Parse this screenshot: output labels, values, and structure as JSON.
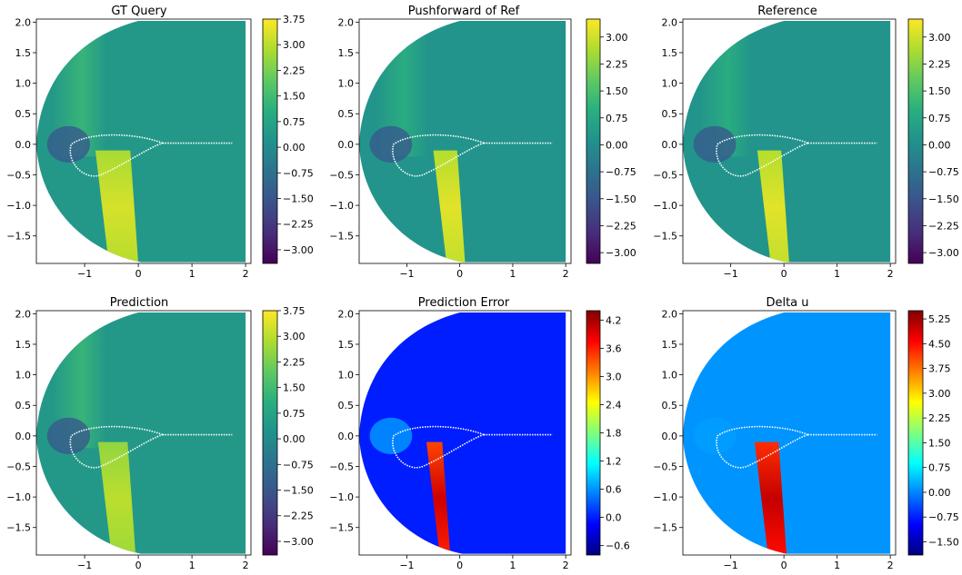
{
  "chart_data": [
    {
      "type": "heatmap",
      "title": "GT Query",
      "colormap": "viridis",
      "x_ticks": [
        "−1",
        "0",
        "1",
        "2"
      ],
      "y_ticks": [
        "2.0",
        "1.5",
        "1.0",
        "0.5",
        "0.0",
        "−0.5",
        "−1.0",
        "−1.5"
      ],
      "xlim": [
        -1.9,
        2.1
      ],
      "ylim": [
        -1.95,
        2.05
      ],
      "colorbar_ticks": [
        "3.75",
        "3.00",
        "2.25",
        "1.50",
        "0.75",
        "0.00",
        "−0.75",
        "−1.50",
        "−2.25",
        "−3.00"
      ],
      "colorbar_range": [
        -3.4,
        3.75
      ],
      "band_bottom_x": [
        -0.55,
        0.0
      ],
      "background_value": 0.4,
      "left_region_value": 1.4,
      "band_value": 3.3
    },
    {
      "type": "heatmap",
      "title": "Pushforward of Ref",
      "colormap": "viridis",
      "x_ticks": [
        "−1",
        "0",
        "1",
        "2"
      ],
      "y_ticks": [
        "2.0",
        "1.5",
        "1.0",
        "0.5",
        "0.0",
        "−0.5",
        "−1.0",
        "−1.5"
      ],
      "xlim": [
        -1.9,
        2.1
      ],
      "ylim": [
        -1.95,
        2.05
      ],
      "colorbar_ticks": [
        "3.00",
        "2.25",
        "1.50",
        "0.75",
        "0.00",
        "−0.75",
        "−1.50",
        "−2.25",
        "−3.00"
      ],
      "colorbar_range": [
        -3.3,
        3.5
      ],
      "band_bottom_x": [
        -0.25,
        0.1
      ],
      "background_value": 0.2,
      "left_region_value": 1.0,
      "band_value": 3.2
    },
    {
      "type": "heatmap",
      "title": "Reference",
      "colormap": "viridis",
      "x_ticks": [
        "−1",
        "0",
        "1",
        "2"
      ],
      "y_ticks": [
        "2.0",
        "1.5",
        "1.0",
        "0.5",
        "0.0",
        "−0.5",
        "−1.0",
        "−1.5"
      ],
      "xlim": [
        -1.9,
        2.1
      ],
      "ylim": [
        -1.95,
        2.05
      ],
      "colorbar_ticks": [
        "3.00",
        "2.25",
        "1.50",
        "0.75",
        "0.00",
        "−0.75",
        "−1.50",
        "−2.25",
        "−3.00"
      ],
      "colorbar_range": [
        -3.3,
        3.5
      ],
      "band_bottom_x": [
        -0.25,
        0.1
      ],
      "background_value": 0.2,
      "left_region_value": 1.0,
      "band_value": 3.2
    },
    {
      "type": "heatmap",
      "title": "Prediction",
      "colormap": "viridis",
      "x_ticks": [
        "−1",
        "0",
        "1",
        "2"
      ],
      "y_ticks": [
        "2.0",
        "1.5",
        "1.0",
        "0.5",
        "0.0",
        "−0.5",
        "−1.0",
        "−1.5"
      ],
      "xlim": [
        -1.9,
        2.1
      ],
      "ylim": [
        -1.95,
        2.05
      ],
      "colorbar_ticks": [
        "3.75",
        "3.00",
        "2.25",
        "1.50",
        "0.75",
        "0.00",
        "−0.75",
        "−1.50",
        "−2.25",
        "−3.00"
      ],
      "colorbar_range": [
        -3.4,
        3.75
      ],
      "band_bottom_x": [
        -0.5,
        -0.05
      ],
      "background_value": 0.4,
      "left_region_value": 1.4,
      "band_value": 3.0
    },
    {
      "type": "heatmap",
      "title": "Prediction Error",
      "colormap": "jet",
      "x_ticks": [
        "−1",
        "0",
        "1",
        "2"
      ],
      "y_ticks": [
        "2.0",
        "1.5",
        "1.0",
        "0.5",
        "0.0",
        "−0.5",
        "−1.0",
        "−1.5"
      ],
      "xlim": [
        -1.9,
        2.1
      ],
      "ylim": [
        -1.95,
        2.05
      ],
      "colorbar_ticks": [
        "4.2",
        "3.6",
        "3.0",
        "2.4",
        "1.8",
        "1.2",
        "0.6",
        "0.0",
        "−0.6"
      ],
      "colorbar_range": [
        -0.8,
        4.4
      ],
      "band_bottom_x": [
        -0.38,
        -0.18
      ],
      "background_value": 0.0,
      "left_region_value": 0.0,
      "band_value": 4.0
    },
    {
      "type": "heatmap",
      "title": "Delta u",
      "colormap": "jet",
      "x_ticks": [
        "−1",
        "0",
        "1",
        "2"
      ],
      "y_ticks": [
        "2.0",
        "1.5",
        "1.0",
        "0.5",
        "0.0",
        "−0.5",
        "−1.0",
        "−1.5"
      ],
      "xlim": [
        -1.9,
        2.1
      ],
      "ylim": [
        -1.95,
        2.05
      ],
      "colorbar_ticks": [
        "5.25",
        "4.50",
        "3.75",
        "3.00",
        "2.25",
        "1.50",
        "0.75",
        "0.00",
        "−0.75",
        "−1.50"
      ],
      "colorbar_range": [
        -1.9,
        5.5
      ],
      "band_bottom_x": [
        -0.3,
        0.05
      ],
      "background_value": 0.1,
      "left_region_value": 0.1,
      "band_value": 5.0
    }
  ]
}
